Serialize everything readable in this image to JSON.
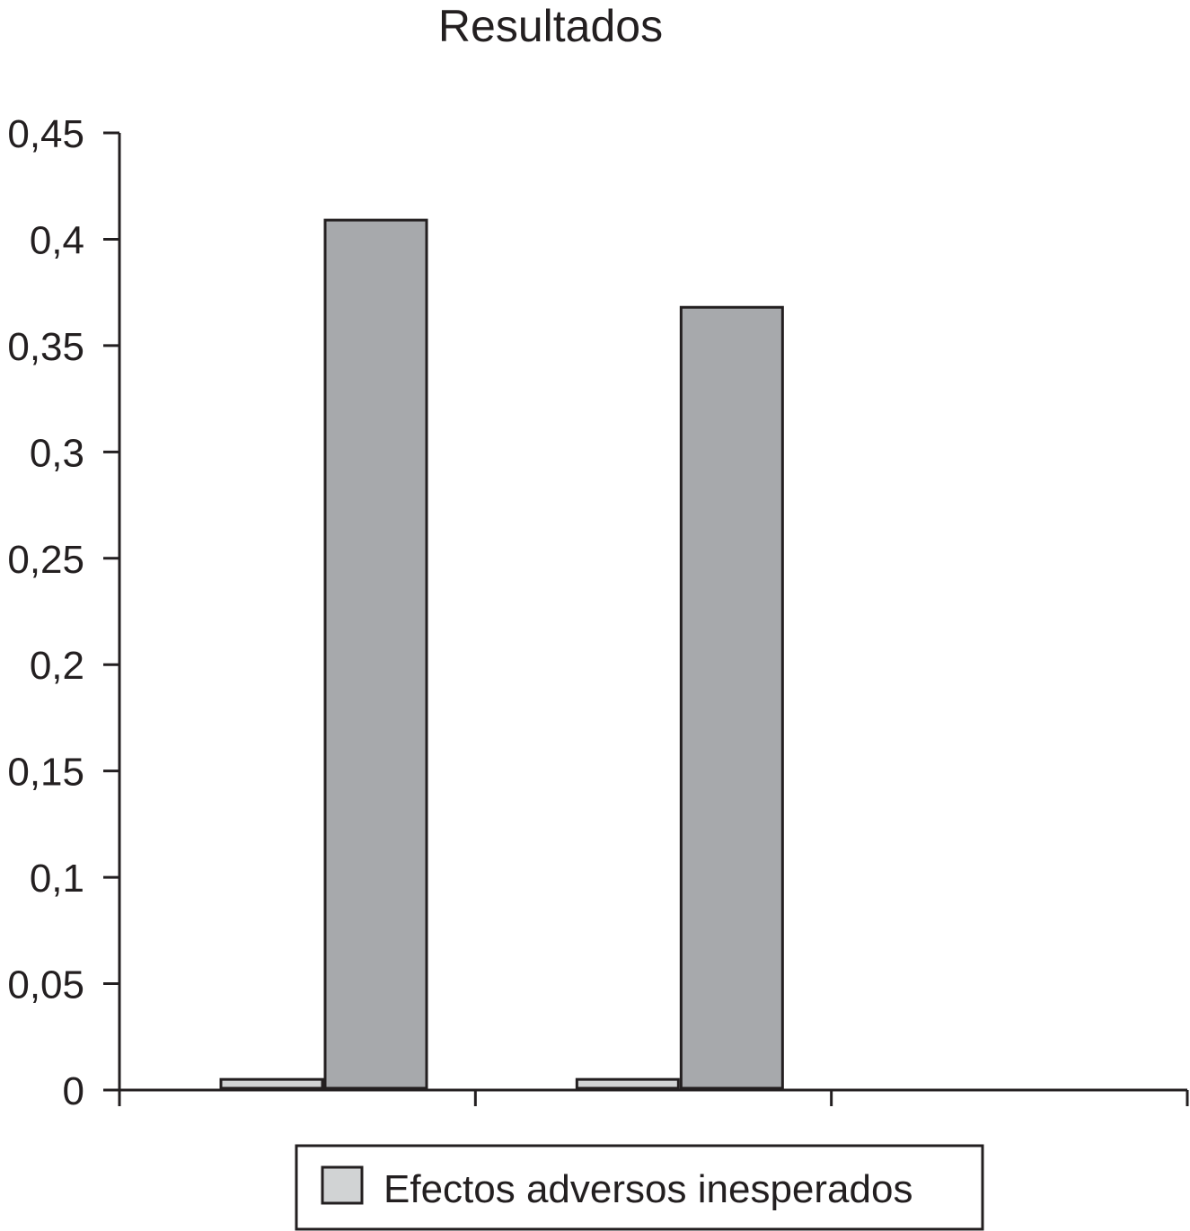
{
  "chart_data": {
    "type": "bar",
    "title": "Resultados",
    "xlabel": "",
    "ylabel": "",
    "ylim": [
      0,
      0.45
    ],
    "y_ticks": [
      "0",
      "0,05",
      "0,1",
      "0,15",
      "0,2",
      "0,25",
      "0,3",
      "0,35",
      "0,4",
      "0,45"
    ],
    "categories": [
      "",
      "",
      ""
    ],
    "series": [
      {
        "name": "Efectos adversos inesperados",
        "color": "#d1d3d4",
        "values": [
          0.005,
          0.005,
          0
        ]
      },
      {
        "name": "",
        "color": "#a7a9ac",
        "values": [
          0.409,
          0.368,
          0
        ]
      }
    ],
    "grid": false,
    "legend": {
      "position": "bottom",
      "entries": [
        "Efectos adversos inesperados"
      ]
    }
  }
}
